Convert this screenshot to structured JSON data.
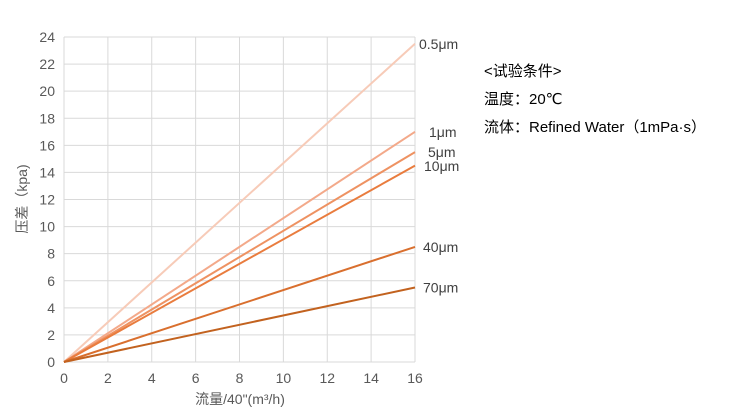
{
  "chart_data": {
    "type": "line",
    "xlabel": "流量/40\"(m³/h)",
    "ylabel": "压差（kpa)",
    "xlim": [
      0,
      16
    ],
    "ylim": [
      0,
      24
    ],
    "xticks": [
      0,
      2,
      4,
      6,
      8,
      10,
      12,
      14,
      16
    ],
    "yticks": [
      0,
      2,
      4,
      6,
      8,
      10,
      12,
      14,
      16,
      18,
      20,
      22,
      24
    ],
    "grid": true,
    "series": [
      {
        "name": "0.5μm",
        "x": [
          0,
          16
        ],
        "y": [
          0,
          23.5
        ],
        "color": "#f7cbb8"
      },
      {
        "name": "1μm",
        "x": [
          0,
          16
        ],
        "y": [
          0,
          17
        ],
        "color": "#f3a98a"
      },
      {
        "name": "5μm",
        "x": [
          0,
          16
        ],
        "y": [
          0,
          15.5
        ],
        "color": "#ee9262"
      },
      {
        "name": "10μm",
        "x": [
          0,
          16
        ],
        "y": [
          0,
          14.5
        ],
        "color": "#e97c3e"
      },
      {
        "name": "40μm",
        "x": [
          0,
          16
        ],
        "y": [
          0,
          8.5
        ],
        "color": "#d96f2e"
      },
      {
        "name": "70μm",
        "x": [
          0,
          16
        ],
        "y": [
          0,
          5.5
        ],
        "color": "#c2621f"
      }
    ]
  },
  "conditions": {
    "title": "<试验条件>",
    "temperature": "温度：20℃",
    "fluid": "流体：Refined Water（1mPa·s）"
  }
}
